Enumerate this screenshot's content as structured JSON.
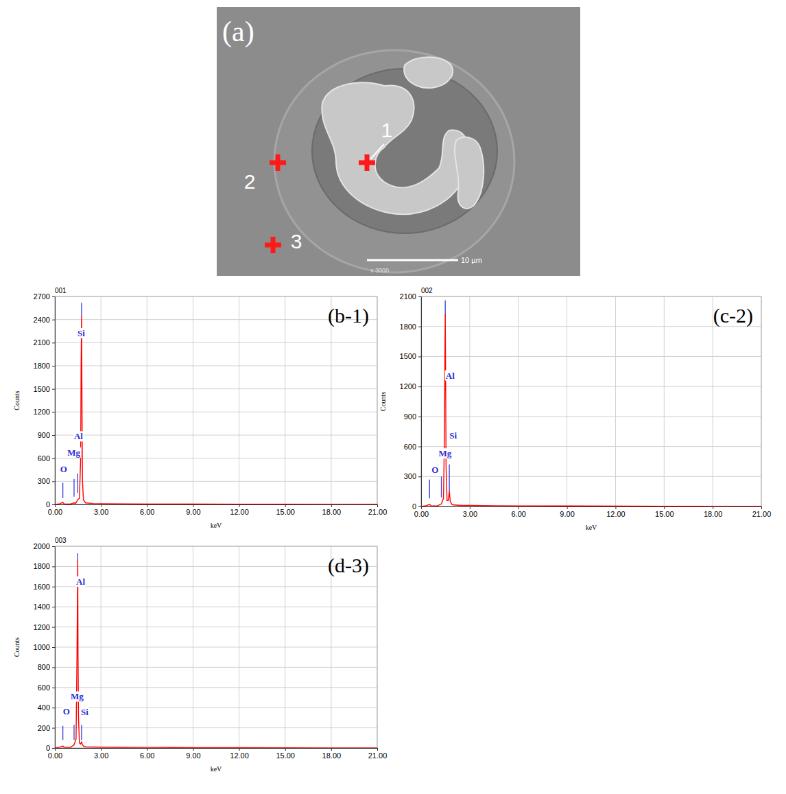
{
  "image_panel": {
    "label": "(a)",
    "points": [
      "1",
      "2",
      "3"
    ],
    "scale_bar": "10 µm",
    "magnification": "x 3000"
  },
  "chart_data": [
    {
      "type": "line",
      "title": "001",
      "panel_label": "(b-1)",
      "x_label": "keV",
      "y_label": "Counts",
      "xlim": [
        0,
        21
      ],
      "xticks": [
        {
          "value": 0,
          "label": "0.00"
        },
        {
          "value": 3,
          "label": "3.00"
        },
        {
          "value": 6,
          "label": "6.00"
        },
        {
          "value": 9,
          "label": "9.00"
        },
        {
          "value": 12,
          "label": "12.00"
        },
        {
          "value": 15,
          "label": "15.00"
        },
        {
          "value": 18,
          "label": "18.00"
        },
        {
          "value": 21,
          "label": "21.00"
        }
      ],
      "ylim": [
        0,
        2700
      ],
      "yticks": [
        0,
        300,
        600,
        900,
        1200,
        1500,
        1800,
        2100,
        2400,
        2700
      ],
      "grid": true,
      "color": "#ff0000",
      "x": [
        0,
        0.3,
        0.52,
        0.6,
        1.0,
        1.25,
        1.35,
        1.49,
        1.6,
        1.68,
        1.71,
        1.74,
        1.77,
        1.8,
        1.86,
        2.0,
        2.5,
        3,
        4.5,
        6,
        9,
        12,
        15,
        18,
        21
      ],
      "values": [
        0,
        8,
        25,
        8,
        6,
        20,
        12,
        60,
        80,
        600,
        1800,
        2450,
        1200,
        300,
        60,
        20,
        12,
        10,
        8,
        6,
        5,
        3,
        2,
        1,
        0
      ],
      "element_lines": [
        {
          "x": 0.52,
          "y0": 80,
          "y1": 280
        },
        {
          "x": 1.25,
          "y0": 100,
          "y1": 330
        },
        {
          "x": 1.49,
          "y0": 150,
          "y1": 400
        },
        {
          "x": 1.74,
          "y0": 2450,
          "y1": 2620
        }
      ],
      "annotations": [
        {
          "text": "O",
          "x": 0.57,
          "y": 445
        },
        {
          "text": "Mg",
          "x": 1.23,
          "y": 660
        },
        {
          "text": "Al",
          "x": 1.54,
          "y": 870
        },
        {
          "text": "Si",
          "x": 1.72,
          "y": 2210
        }
      ]
    },
    {
      "type": "line",
      "title": "002",
      "panel_label": "(c-2)",
      "x_label": "keV",
      "y_label": "Counts",
      "xlim": [
        0,
        21
      ],
      "xticks": [
        {
          "value": 0,
          "label": "0.00"
        },
        {
          "value": 3,
          "label": "3.00"
        },
        {
          "value": 6,
          "label": "6.00"
        },
        {
          "value": 9,
          "label": "9.00"
        },
        {
          "value": 12,
          "label": "12.00"
        },
        {
          "value": 15,
          "label": "15.00"
        },
        {
          "value": 18,
          "label": "18.00"
        },
        {
          "value": 21,
          "label": "21.00"
        }
      ],
      "ylim": [
        0,
        2100
      ],
      "yticks": [
        0,
        300,
        600,
        900,
        1200,
        1500,
        1800,
        2100
      ],
      "grid": true,
      "color": "#ff0000",
      "x": [
        0,
        0.3,
        0.52,
        0.6,
        1.0,
        1.25,
        1.38,
        1.44,
        1.47,
        1.49,
        1.51,
        1.54,
        1.6,
        1.68,
        1.74,
        1.8,
        1.9,
        2.0,
        2.5,
        3,
        4.5,
        6,
        9,
        12,
        15,
        18,
        21
      ],
      "values": [
        0,
        8,
        20,
        8,
        6,
        25,
        80,
        700,
        1500,
        1920,
        1400,
        400,
        60,
        60,
        150,
        50,
        20,
        15,
        10,
        10,
        8,
        6,
        5,
        3,
        2,
        1,
        0
      ],
      "element_lines": [
        {
          "x": 0.52,
          "y0": 80,
          "y1": 270
        },
        {
          "x": 1.25,
          "y0": 90,
          "y1": 300
        },
        {
          "x": 1.49,
          "y0": 1900,
          "y1": 2060
        },
        {
          "x": 1.74,
          "y0": 150,
          "y1": 420
        }
      ],
      "annotations": [
        {
          "text": "O",
          "x": 0.86,
          "y": 357
        },
        {
          "text": "Mg",
          "x": 1.48,
          "y": 520
        },
        {
          "text": "Si",
          "x": 1.98,
          "y": 700
        },
        {
          "text": "Al",
          "x": 1.79,
          "y": 1300
        }
      ]
    },
    {
      "type": "line",
      "title": "003",
      "panel_label": "(d-3)",
      "x_label": "keV",
      "y_label": "Counts",
      "xlim": [
        0,
        21
      ],
      "xticks": [
        {
          "value": 0,
          "label": "0.00"
        },
        {
          "value": 3,
          "label": "3.00"
        },
        {
          "value": 6,
          "label": "6.00"
        },
        {
          "value": 9,
          "label": "9.00"
        },
        {
          "value": 12,
          "label": "12.00"
        },
        {
          "value": 15,
          "label": "15.00"
        },
        {
          "value": 18,
          "label": "18.00"
        },
        {
          "value": 21,
          "label": "21.00"
        }
      ],
      "ylim": [
        0,
        2000
      ],
      "yticks": [
        0,
        200,
        400,
        600,
        800,
        1000,
        1200,
        1400,
        1600,
        1800,
        2000
      ],
      "grid": true,
      "color": "#ff0000",
      "x": [
        0,
        0.3,
        0.52,
        0.6,
        1.0,
        1.25,
        1.38,
        1.44,
        1.47,
        1.49,
        1.51,
        1.54,
        1.6,
        1.68,
        1.74,
        1.8,
        1.9,
        2.0,
        2.5,
        3,
        4.5,
        6,
        9,
        12,
        15,
        18,
        21
      ],
      "values": [
        0,
        8,
        20,
        8,
        6,
        30,
        90,
        900,
        1500,
        1860,
        900,
        300,
        50,
        40,
        60,
        30,
        15,
        12,
        10,
        8,
        7,
        6,
        4,
        3,
        2,
        1,
        0
      ],
      "element_lines": [
        {
          "x": 0.52,
          "y0": 80,
          "y1": 220
        },
        {
          "x": 1.25,
          "y0": 80,
          "y1": 230
        },
        {
          "x": 1.49,
          "y0": 1850,
          "y1": 1930
        },
        {
          "x": 1.74,
          "y0": 80,
          "y1": 230
        }
      ],
      "annotations": [
        {
          "text": "O",
          "x": 0.75,
          "y": 355
        },
        {
          "text": "Mg",
          "x": 1.45,
          "y": 500
        },
        {
          "text": "Si",
          "x": 1.94,
          "y": 350
        },
        {
          "text": "Al",
          "x": 1.68,
          "y": 1640
        }
      ]
    }
  ]
}
